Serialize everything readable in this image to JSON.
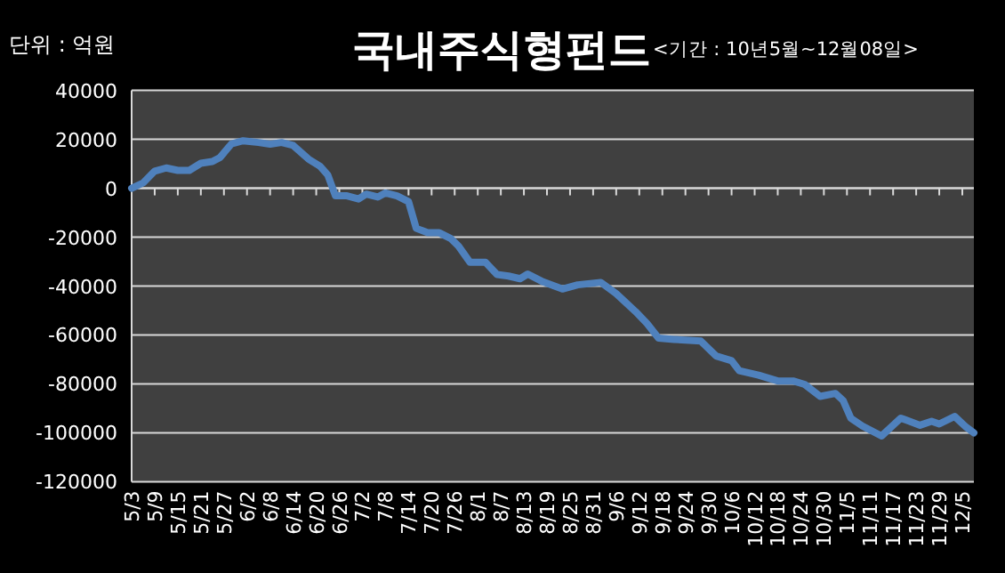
{
  "chart_data": {
    "type": "line",
    "title": "국내주식형펀드",
    "subtitle": "<기간 : 10년5월~12월08일>",
    "ylabel": "단위 : 억원",
    "color": "#4f81bd",
    "grid": "y",
    "x": [
      "--05-03",
      "--05-06",
      "--05-09",
      "--05-12",
      "--05-15",
      "--05-18",
      "--05-21",
      "--05-24",
      "--05-26",
      "--05-29",
      "--06-01",
      "--06-05",
      "--06-08",
      "--06-11",
      "--06-14",
      "--06-18",
      "--06-21",
      "--06-23",
      "--06-25",
      "--06-28",
      "--07-01",
      "--07-03",
      "--07-06",
      "--07-08",
      "--07-11",
      "--07-14",
      "--07-16",
      "--07-19",
      "--07-22",
      "--07-25",
      "--07-27",
      "--07-30",
      "--08-03",
      "--08-06",
      "--08-09",
      "--08-12",
      "--08-14",
      "--08-18",
      "--08-23",
      "--08-27",
      "--09-02",
      "--09-06",
      "--09-11",
      "--09-14",
      "--09-17",
      "--09-21",
      "--09-28",
      "--10-02",
      "--10-06",
      "--10-08",
      "--10-13",
      "--10-18",
      "--10-22",
      "--10-25",
      "--10-29",
      "--11-02",
      "--11-04",
      "--11-06",
      "--11-09",
      "--11-14",
      "--11-19",
      "--11-24",
      "--11-27",
      "--11-29",
      "--12-03",
      "--12-06",
      "--12-08"
    ],
    "values": [
      0,
      2200,
      7000,
      8300,
      7300,
      7300,
      10200,
      10900,
      12600,
      18200,
      19400,
      18700,
      18000,
      18700,
      17500,
      11900,
      9000,
      5400,
      -3100,
      -3100,
      -4400,
      -2400,
      -3600,
      -1900,
      -3100,
      -5500,
      -16400,
      -18200,
      -18200,
      -20600,
      -23700,
      -30300,
      -30300,
      -35300,
      -35900,
      -37000,
      -35100,
      -38300,
      -41200,
      -39500,
      -38500,
      -43100,
      -50400,
      -55300,
      -61300,
      -61800,
      -62500,
      -68600,
      -70500,
      -74600,
      -76400,
      -78800,
      -78800,
      -80200,
      -85100,
      -83900,
      -86800,
      -94000,
      -97200,
      -101300,
      -94000,
      -96900,
      -95300,
      -96400,
      -93300,
      -97700,
      -100000
    ],
    "xlim": [
      "--05-03",
      "--12-08"
    ],
    "ylim": [
      -120000,
      40000
    ],
    "yticks": [
      -120000,
      -100000,
      -80000,
      -60000,
      -40000,
      -20000,
      0,
      20000,
      40000
    ],
    "xticks": [
      {
        "value": "--05-03",
        "label": "5/3"
      },
      {
        "value": "--05-09",
        "label": "5/9"
      },
      {
        "value": "--05-15",
        "label": "5/15"
      },
      {
        "value": "--05-21",
        "label": "5/21"
      },
      {
        "value": "--05-27",
        "label": "5/27"
      },
      {
        "value": "--06-02",
        "label": "6/2"
      },
      {
        "value": "--06-08",
        "label": "6/8"
      },
      {
        "value": "--06-14",
        "label": "6/14"
      },
      {
        "value": "--06-20",
        "label": "6/20"
      },
      {
        "value": "--06-26",
        "label": "6/26"
      },
      {
        "value": "--07-02",
        "label": "7/2"
      },
      {
        "value": "--07-08",
        "label": "7/8"
      },
      {
        "value": "--07-14",
        "label": "7/14"
      },
      {
        "value": "--07-20",
        "label": "7/20"
      },
      {
        "value": "--07-26",
        "label": "7/26"
      },
      {
        "value": "--08-01",
        "label": "8/1"
      },
      {
        "value": "--08-07",
        "label": "8/7"
      },
      {
        "value": "--08-13",
        "label": "8/13"
      },
      {
        "value": "--08-19",
        "label": "8/19"
      },
      {
        "value": "--08-25",
        "label": "8/25"
      },
      {
        "value": "--08-31",
        "label": "8/31"
      },
      {
        "value": "--09-06",
        "label": "9/6"
      },
      {
        "value": "--09-12",
        "label": "9/12"
      },
      {
        "value": "--09-18",
        "label": "9/18"
      },
      {
        "value": "--09-24",
        "label": "9/24"
      },
      {
        "value": "--09-30",
        "label": "9/30"
      },
      {
        "value": "--10-06",
        "label": "10/6"
      },
      {
        "value": "--10-12",
        "label": "10/12"
      },
      {
        "value": "--10-18",
        "label": "10/18"
      },
      {
        "value": "--10-24",
        "label": "10/24"
      },
      {
        "value": "--10-30",
        "label": "10/30"
      },
      {
        "value": "--11-05",
        "label": "11/5"
      },
      {
        "value": "--11-11",
        "label": "11/11"
      },
      {
        "value": "--11-17",
        "label": "11/17"
      },
      {
        "value": "--11-23",
        "label": "11/23"
      },
      {
        "value": "--11-29",
        "label": "11/29"
      },
      {
        "value": "--12-05",
        "label": "12/5"
      }
    ]
  }
}
